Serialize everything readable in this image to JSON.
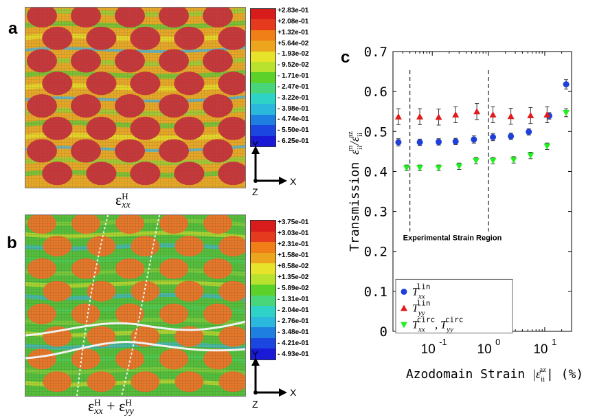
{
  "panels": {
    "a": {
      "letter": "a",
      "colorbar_ticks": [
        "+2.83e-01",
        "+2.08e-01",
        "+1.32e-01",
        "+5.64e-02",
        "- 1.93e-02",
        "- 9.52e-02",
        "- 1.71e-01",
        "- 2.47e-01",
        "- 3.22e-01",
        "- 3.98e-01",
        "- 4.74e-01",
        "- 5.50e-01",
        "- 6.25e-01"
      ],
      "label_main": "ε",
      "label_sup": "H",
      "label_sub": "xx",
      "axis_y": "Y",
      "axis_x": "X",
      "axis_z": "Z"
    },
    "b": {
      "letter": "b",
      "colorbar_ticks": [
        "+3.75e-01",
        "+3.03e-01",
        "+2.31e-01",
        "+1.58e-01",
        "+8.58e-02",
        "+1.35e-02",
        "- 5.89e-02",
        "- 1.31e-01",
        "- 2.04e-01",
        "- 2.76e-01",
        "- 3.48e-01",
        "- 4.21e-01",
        "- 4.93e-01"
      ],
      "label_part1_main": "ε",
      "label_part1_sup": "H",
      "label_part1_sub": "xx",
      "label_plus": " + ",
      "label_part2_main": "ε",
      "label_part2_sup": "H",
      "label_part2_sub": "yy",
      "axis_y": "Y",
      "axis_x": "X",
      "axis_z": "Z"
    },
    "c": {
      "letter": "c"
    }
  },
  "colors": {
    "colorbar": [
      "#d81b1b",
      "#e63a1e",
      "#ef7f16",
      "#eda51e",
      "#e6e32a",
      "#b9e22e",
      "#5cd12a",
      "#49d67a",
      "#2ed2c6",
      "#2ab8dc",
      "#1e7fe0",
      "#1b46e0",
      "#1a1ad6"
    ],
    "mesh_a_bg": "#e6a826",
    "mesh_a_blob": "#c8383a",
    "mesh_b_bg": "#55bf3c",
    "mesh_b_blob": "#e6782a",
    "series_lin_xx": "#1f3fd9",
    "series_lin_yy": "#e01b1b",
    "series_circ": "#22ee22"
  },
  "chart_data": {
    "type": "scatter",
    "xscale": "log",
    "xlim": [
      0.02,
      30
    ],
    "ylim": [
      0,
      0.7
    ],
    "yticks": [
      "0",
      "0.1",
      "0.2",
      "0.3",
      "0.4",
      "0.5",
      "0.6",
      "0.7"
    ],
    "ytick_values": [
      0,
      0.1,
      0.2,
      0.3,
      0.4,
      0.5,
      0.6,
      0.7
    ],
    "xticks": [
      {
        "value": 0.1,
        "base": "10",
        "exp": "-1"
      },
      {
        "value": 1,
        "base": "10",
        "exp": "0"
      },
      {
        "value": 10,
        "base": "10",
        "exp": "1"
      }
    ],
    "xlabel_text": "Azodomain Strain ",
    "xlabel_math": "|ε",
    "xlabel_sub": "ii",
    "xlabel_sup": "az",
    "xlabel_tail": "| (%)",
    "ylabel_text": "Transmission ",
    "ylabel_math": "ε",
    "ylabel_sub": "ii",
    "ylabel_sup": "m",
    "ylabel_sep": "/ε",
    "ylabel_sub2": "ii",
    "ylabel_sup2": "az",
    "annotation": "Experimental Strain Region",
    "region_lines_x": [
      0.04,
      1.0
    ],
    "grid": false,
    "legend_position": "bottom-left",
    "series": [
      {
        "name_base": "T",
        "name_sub": "xx",
        "name_sup": "lin",
        "marker": "circle",
        "x": [
          0.025,
          0.06,
          0.13,
          0.26,
          0.55,
          1.2,
          2.5,
          5.2,
          12,
          24
        ],
        "y": [
          0.473,
          0.473,
          0.474,
          0.475,
          0.48,
          0.486,
          0.488,
          0.499,
          0.539,
          0.618
        ],
        "err": [
          0.009,
          0.008,
          0.008,
          0.008,
          0.009,
          0.009,
          0.008,
          0.008,
          0.008,
          0.012
        ]
      },
      {
        "name_base": "T",
        "name_sub": "yy",
        "name_sup": "lin",
        "marker": "triangle-up",
        "x": [
          0.025,
          0.06,
          0.13,
          0.26,
          0.62,
          1.2,
          2.5,
          5.6,
          11
        ],
        "y": [
          0.537,
          0.537,
          0.536,
          0.542,
          0.55,
          0.542,
          0.538,
          0.54,
          0.542
        ],
        "err": [
          0.02,
          0.02,
          0.02,
          0.02,
          0.02,
          0.02,
          0.02,
          0.02,
          0.02
        ]
      },
      {
        "name_base": "T",
        "name_sub": "xx",
        "name_sup": "circ",
        "name_sep": ", ",
        "name_base2": "T",
        "name_sub2": "yy",
        "name_sup2": "circ",
        "marker": "triangle-down",
        "x": [
          0.035,
          0.06,
          0.13,
          0.3,
          0.6,
          1.2,
          2.8,
          5.6,
          11,
          24
        ],
        "y": [
          0.409,
          0.409,
          0.409,
          0.413,
          0.427,
          0.427,
          0.429,
          0.44,
          0.463,
          0.547
        ],
        "err": [
          0.007,
          0.007,
          0.007,
          0.008,
          0.008,
          0.008,
          0.008,
          0.008,
          0.008,
          0.01
        ]
      }
    ]
  }
}
